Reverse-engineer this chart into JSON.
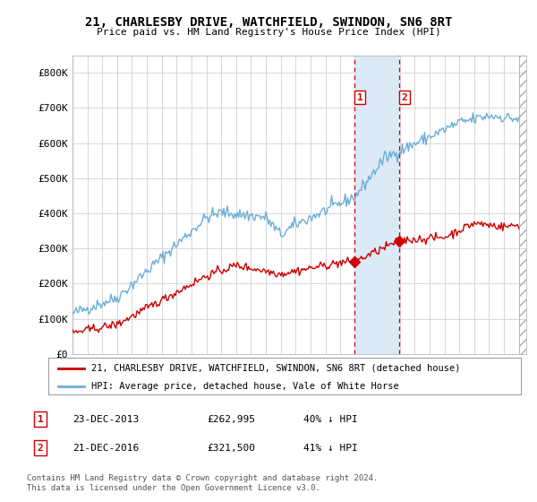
{
  "title": "21, CHARLESBY DRIVE, WATCHFIELD, SWINDON, SN6 8RT",
  "subtitle": "Price paid vs. HM Land Registry's House Price Index (HPI)",
  "legend_line1": "21, CHARLESBY DRIVE, WATCHFIELD, SWINDON, SN6 8RT (detached house)",
  "legend_line2": "HPI: Average price, detached house, Vale of White Horse",
  "table_row1": [
    "1",
    "23-DEC-2013",
    "£262,995",
    "40% ↓ HPI"
  ],
  "table_row2": [
    "2",
    "21-DEC-2016",
    "£321,500",
    "41% ↓ HPI"
  ],
  "footer": "Contains HM Land Registry data © Crown copyright and database right 2024.\nThis data is licensed under the Open Government Licence v3.0.",
  "hpi_color": "#6baed6",
  "price_color": "#cc0000",
  "marker1_date_x": 2013.97,
  "marker2_date_x": 2016.97,
  "marker1_price": 262995,
  "marker2_price": 321500,
  "ylabel_ticks": [
    0,
    100000,
    200000,
    300000,
    400000,
    500000,
    600000,
    700000,
    800000
  ],
  "ylabel_labels": [
    "£0",
    "£100K",
    "£200K",
    "£300K",
    "£400K",
    "£500K",
    "£600K",
    "£700K",
    "£800K"
  ],
  "xmin": 1995.0,
  "xmax": 2025.5,
  "ymin": 0,
  "ymax": 850000,
  "background_color": "#ffffff",
  "grid_color": "#d0d0d0",
  "highlight_rect_color": "#dce9f7"
}
